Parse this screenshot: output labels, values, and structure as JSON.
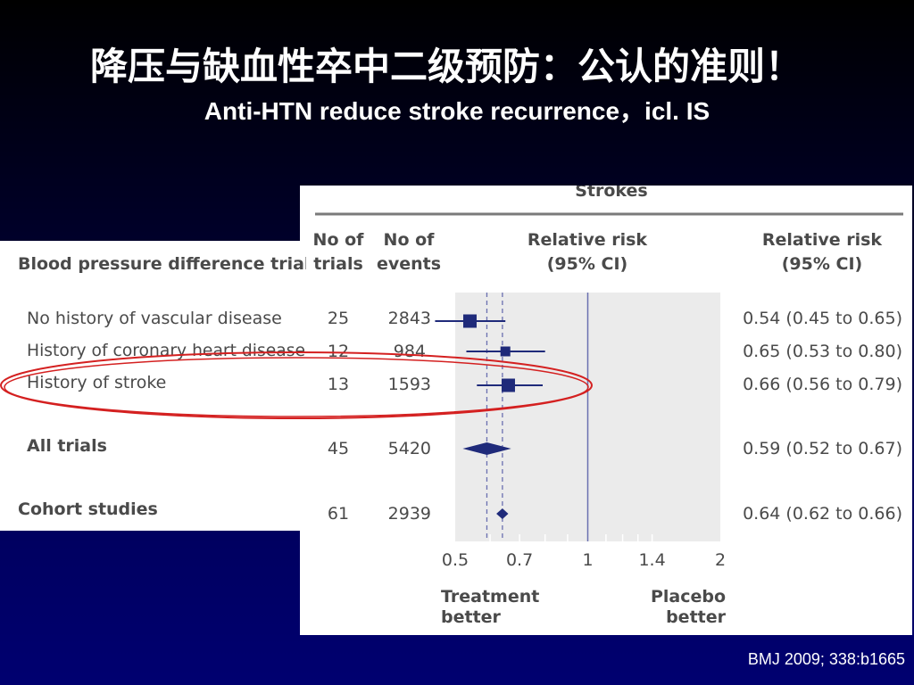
{
  "slide": {
    "title_cn": "降压与缺血性卒中二级预防：公认的准则！",
    "subtitle_en": "Anti-HTN reduce stroke recurrence，icl. IS",
    "citation": "BMJ 2009; 338:b1665"
  },
  "table": {
    "section_title": "Strokes",
    "col_trials": [
      "No of",
      "trials"
    ],
    "col_events": [
      "No of",
      "events"
    ],
    "col_rr_plot": [
      "Relative risk",
      "(95% CI)"
    ],
    "col_rr_text": [
      "Relative risk",
      "(95% CI)"
    ],
    "group_header": "Blood pressure difference trials",
    "rows": [
      {
        "label": "No history of vascular disease",
        "trials": "25",
        "events": "2843",
        "rr": "0.54 (0.45 to 0.65)"
      },
      {
        "label": "History of coronary heart disease",
        "trials": "12",
        "events": "984",
        "rr": "0.65 (0.53 to 0.80)"
      },
      {
        "label": "History of stroke",
        "trials": "13",
        "events": "1593",
        "rr": "0.66 (0.56 to 0.79)"
      },
      {
        "label": "All trials",
        "trials": "45",
        "events": "5420",
        "rr": "0.59 (0.52 to 0.67)"
      },
      {
        "label": "Cohort studies",
        "trials": "61",
        "events": "2939",
        "rr": "0.64 (0.62 to 0.66)"
      }
    ],
    "x_ticks": [
      "0.5",
      "0.7",
      "1",
      "1.4",
      "2"
    ],
    "left_label": [
      "Treatment",
      "better"
    ],
    "right_label": [
      "Placebo",
      "better"
    ]
  },
  "chart_data": {
    "type": "scatter",
    "x_scale": "log",
    "xlim": [
      0.5,
      2
    ],
    "x_ticks": [
      0.5,
      0.7,
      1,
      1.4,
      2
    ],
    "reference_line": 1,
    "dashed_lines": [
      0.59,
      0.64
    ],
    "series": [
      {
        "name": "No history of vascular disease",
        "value": 0.54,
        "lo": 0.45,
        "hi": 0.65,
        "marker": "square"
      },
      {
        "name": "History of coronary heart disease",
        "value": 0.65,
        "lo": 0.53,
        "hi": 0.8,
        "marker": "square"
      },
      {
        "name": "History of stroke",
        "value": 0.66,
        "lo": 0.56,
        "hi": 0.79,
        "marker": "square"
      },
      {
        "name": "All trials",
        "value": 0.59,
        "lo": 0.52,
        "hi": 0.67,
        "marker": "diamond"
      },
      {
        "name": "Cohort studies",
        "value": 0.64,
        "lo": 0.62,
        "hi": 0.66,
        "marker": "diamond"
      }
    ],
    "highlight": "History of stroke",
    "colors": {
      "marker": "#1f2a7a",
      "ref_line": "#6a6fb0",
      "dashed": "#6a6fb0",
      "plot_bg": "#ebebeb",
      "ellipse": "#d42020"
    }
  }
}
